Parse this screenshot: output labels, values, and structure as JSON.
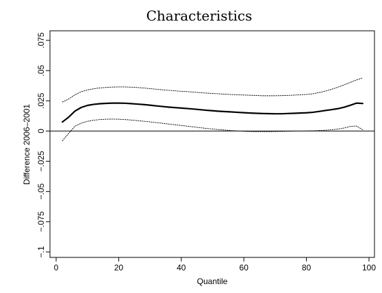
{
  "chart_data": {
    "type": "line",
    "title": "Characteristics",
    "xlabel": "Quantile",
    "ylabel": "Difference 2006–2001",
    "xlim": [
      0,
      100
    ],
    "ylim": [
      -0.1,
      0.075
    ],
    "x_ticks": [
      0,
      20,
      40,
      60,
      80,
      100
    ],
    "x_tick_labels": [
      "0",
      "20",
      "40",
      "60",
      "80",
      "100"
    ],
    "y_ticks": [
      -0.1,
      -0.075,
      -0.05,
      -0.025,
      0,
      0.025,
      0.05,
      0.075
    ],
    "y_tick_labels": [
      "−.1",
      "−.075",
      "−.05",
      "−.025",
      "0",
      ".025",
      ".05",
      ".075"
    ],
    "grid": false,
    "reference_line_y": 0,
    "x": [
      2,
      4,
      6,
      8,
      10,
      12,
      14,
      16,
      18,
      20,
      22,
      24,
      26,
      28,
      30,
      32,
      34,
      36,
      38,
      40,
      42,
      44,
      46,
      48,
      50,
      52,
      54,
      56,
      58,
      60,
      62,
      64,
      66,
      68,
      70,
      72,
      74,
      76,
      78,
      80,
      82,
      84,
      86,
      88,
      90,
      92,
      94,
      96,
      98
    ],
    "series": [
      {
        "values": [
          0.0075,
          0.0115,
          0.0165,
          0.0195,
          0.0212,
          0.0221,
          0.0226,
          0.0229,
          0.0231,
          0.0231,
          0.023,
          0.0227,
          0.0223,
          0.0219,
          0.0214,
          0.0208,
          0.0203,
          0.0198,
          0.0194,
          0.019,
          0.0186,
          0.0182,
          0.0177,
          0.0172,
          0.0168,
          0.0164,
          0.0161,
          0.0158,
          0.0155,
          0.0152,
          0.0149,
          0.0147,
          0.0145,
          0.0144,
          0.0143,
          0.0143,
          0.0145,
          0.0147,
          0.0149,
          0.0151,
          0.0155,
          0.0162,
          0.017,
          0.0177,
          0.0185,
          0.0197,
          0.0213,
          0.0231,
          0.0228
        ],
        "style": "solid"
      },
      {
        "values": [
          0.024,
          0.0265,
          0.03,
          0.0325,
          0.034,
          0.035,
          0.0357,
          0.0361,
          0.0364,
          0.0365,
          0.0365,
          0.0363,
          0.036,
          0.0356,
          0.0351,
          0.0346,
          0.0341,
          0.0337,
          0.0333,
          0.0329,
          0.0326,
          0.0322,
          0.0318,
          0.0314,
          0.0311,
          0.0308,
          0.0305,
          0.0302,
          0.03,
          0.0298,
          0.0296,
          0.0294,
          0.0292,
          0.0292,
          0.0292,
          0.0293,
          0.0295,
          0.0297,
          0.03,
          0.0303,
          0.0308,
          0.0318,
          0.033,
          0.0345,
          0.0362,
          0.0382,
          0.0402,
          0.0423,
          0.044
        ],
        "style": "dotted"
      },
      {
        "values": [
          -0.008,
          -0.002,
          0.004,
          0.0065,
          0.008,
          0.009,
          0.0095,
          0.0098,
          0.0099,
          0.0098,
          0.0095,
          0.0091,
          0.0086,
          0.0081,
          0.0076,
          0.007,
          0.0064,
          0.0058,
          0.0052,
          0.0046,
          0.004,
          0.0034,
          0.0028,
          0.0022,
          0.0017,
          0.0012,
          0.0008,
          0.0004,
          0.0001,
          -0.0002,
          -0.0004,
          -0.0005,
          -0.0005,
          -0.0005,
          -0.0004,
          -0.0003,
          -0.0002,
          -0.0001,
          0.0,
          0.0001,
          0.0002,
          0.0004,
          0.0007,
          0.0011,
          0.0016,
          0.0025,
          0.0038,
          0.0042,
          0.001
        ],
        "style": "dotted"
      }
    ]
  }
}
